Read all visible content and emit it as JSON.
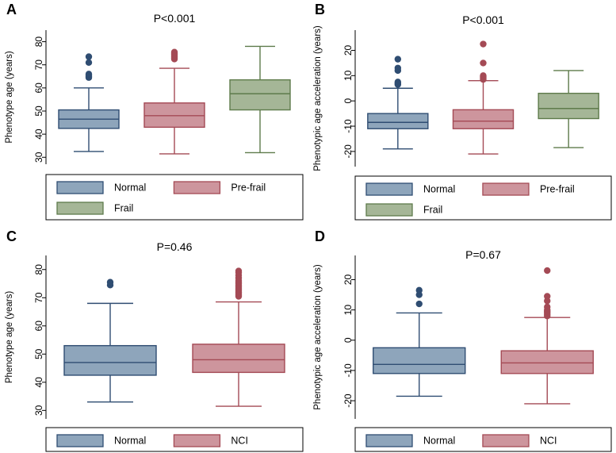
{
  "colors": {
    "normal_fill": "#8ea5bb",
    "normal_line": "#2f4d72",
    "prefrail_fill": "#cd959d",
    "prefrail_line": "#a44a55",
    "frail_fill": "#a5b697",
    "frail_line": "#5e7b4b"
  },
  "chart_data": [
    {
      "type": "box",
      "panel": "A",
      "title": "P<0.001",
      "ylabel": "Phenotype age (years)",
      "ylim": [
        27,
        85
      ],
      "yticks": [
        30,
        40,
        50,
        60,
        70,
        80
      ],
      "legend": [
        "Normal",
        "Pre-frail",
        "Frail"
      ],
      "series": [
        {
          "name": "Normal",
          "fill": "#8ea5bb",
          "line": "#2f4d72",
          "min": 32.5,
          "q1": 42.5,
          "median": 46.5,
          "q3": 50.5,
          "max": 60,
          "outliers": [
            64.5,
            65,
            65.5,
            66,
            71,
            73.5
          ]
        },
        {
          "name": "Pre-frail",
          "fill": "#cd959d",
          "line": "#a44a55",
          "min": 31.5,
          "q1": 43,
          "median": 48,
          "q3": 53.5,
          "max": 68.5,
          "outliers": [
            72.5,
            73,
            73.5,
            74,
            74.5,
            75,
            75.5
          ]
        },
        {
          "name": "Frail",
          "fill": "#a5b697",
          "line": "#5e7b4b",
          "min": 32,
          "q1": 50.5,
          "median": 57.5,
          "q3": 63.5,
          "max": 78,
          "outliers": []
        }
      ]
    },
    {
      "type": "box",
      "panel": "B",
      "title": "P<0.001",
      "ylabel": "Phenotypic age acceleration (years)",
      "ylim": [
        -26,
        28
      ],
      "yticks": [
        -20,
        -10,
        0,
        10,
        20
      ],
      "legend": [
        "Normal",
        "Pre-frail",
        "Frail"
      ],
      "series": [
        {
          "name": "Normal",
          "fill": "#8ea5bb",
          "line": "#2f4d72",
          "min": -19,
          "q1": -11,
          "median": -8.5,
          "q3": -5,
          "max": 5,
          "outliers": [
            6.5,
            7,
            7.5,
            12,
            13,
            16.5
          ]
        },
        {
          "name": "Pre-frail",
          "fill": "#cd959d",
          "line": "#a44a55",
          "min": -21,
          "q1": -11,
          "median": -8,
          "q3": -3.5,
          "max": 8,
          "outliers": [
            8.5,
            9,
            9.5,
            10,
            15,
            22.5
          ]
        },
        {
          "name": "Frail",
          "fill": "#a5b697",
          "line": "#5e7b4b",
          "min": -18.5,
          "q1": -7,
          "median": -3,
          "q3": 3,
          "max": 12,
          "outliers": []
        }
      ]
    },
    {
      "type": "box",
      "panel": "C",
      "title": "P=0.46",
      "ylabel": "Phenotype age (years)",
      "ylim": [
        27,
        85
      ],
      "yticks": [
        30,
        40,
        50,
        60,
        70,
        80
      ],
      "legend": [
        "Normal",
        "NCI"
      ],
      "series": [
        {
          "name": "Normal",
          "fill": "#8ea5bb",
          "line": "#2f4d72",
          "min": 33,
          "q1": 42.5,
          "median": 47,
          "q3": 53,
          "max": 68,
          "outliers": [
            74.5,
            75.5
          ]
        },
        {
          "name": "NCI",
          "fill": "#cd959d",
          "line": "#a44a55",
          "min": 31.5,
          "q1": 43.5,
          "median": 48,
          "q3": 53.5,
          "max": 68.5,
          "outliers": [
            70.5,
            71,
            71.5,
            72,
            72.5,
            73,
            73.5,
            74,
            74.5,
            75,
            75.5,
            76,
            77,
            78,
            79,
            79.5
          ]
        }
      ]
    },
    {
      "type": "box",
      "panel": "D",
      "title": "P=0.67",
      "ylabel": "Phenotypic age acceleration (years)",
      "ylim": [
        -26,
        28
      ],
      "yticks": [
        -20,
        -10,
        0,
        10,
        20
      ],
      "legend": [
        "Normal",
        "NCI"
      ],
      "series": [
        {
          "name": "Normal",
          "fill": "#8ea5bb",
          "line": "#2f4d72",
          "min": -18.5,
          "q1": -11,
          "median": -8,
          "q3": -2.5,
          "max": 9,
          "outliers": [
            12,
            15,
            16.5
          ]
        },
        {
          "name": "NCI",
          "fill": "#cd959d",
          "line": "#a44a55",
          "min": -21,
          "q1": -11,
          "median": -7.5,
          "q3": -3.5,
          "max": 7.5,
          "outliers": [
            8,
            8.5,
            9,
            9.5,
            10,
            11,
            13,
            14.5,
            23
          ]
        }
      ]
    }
  ]
}
